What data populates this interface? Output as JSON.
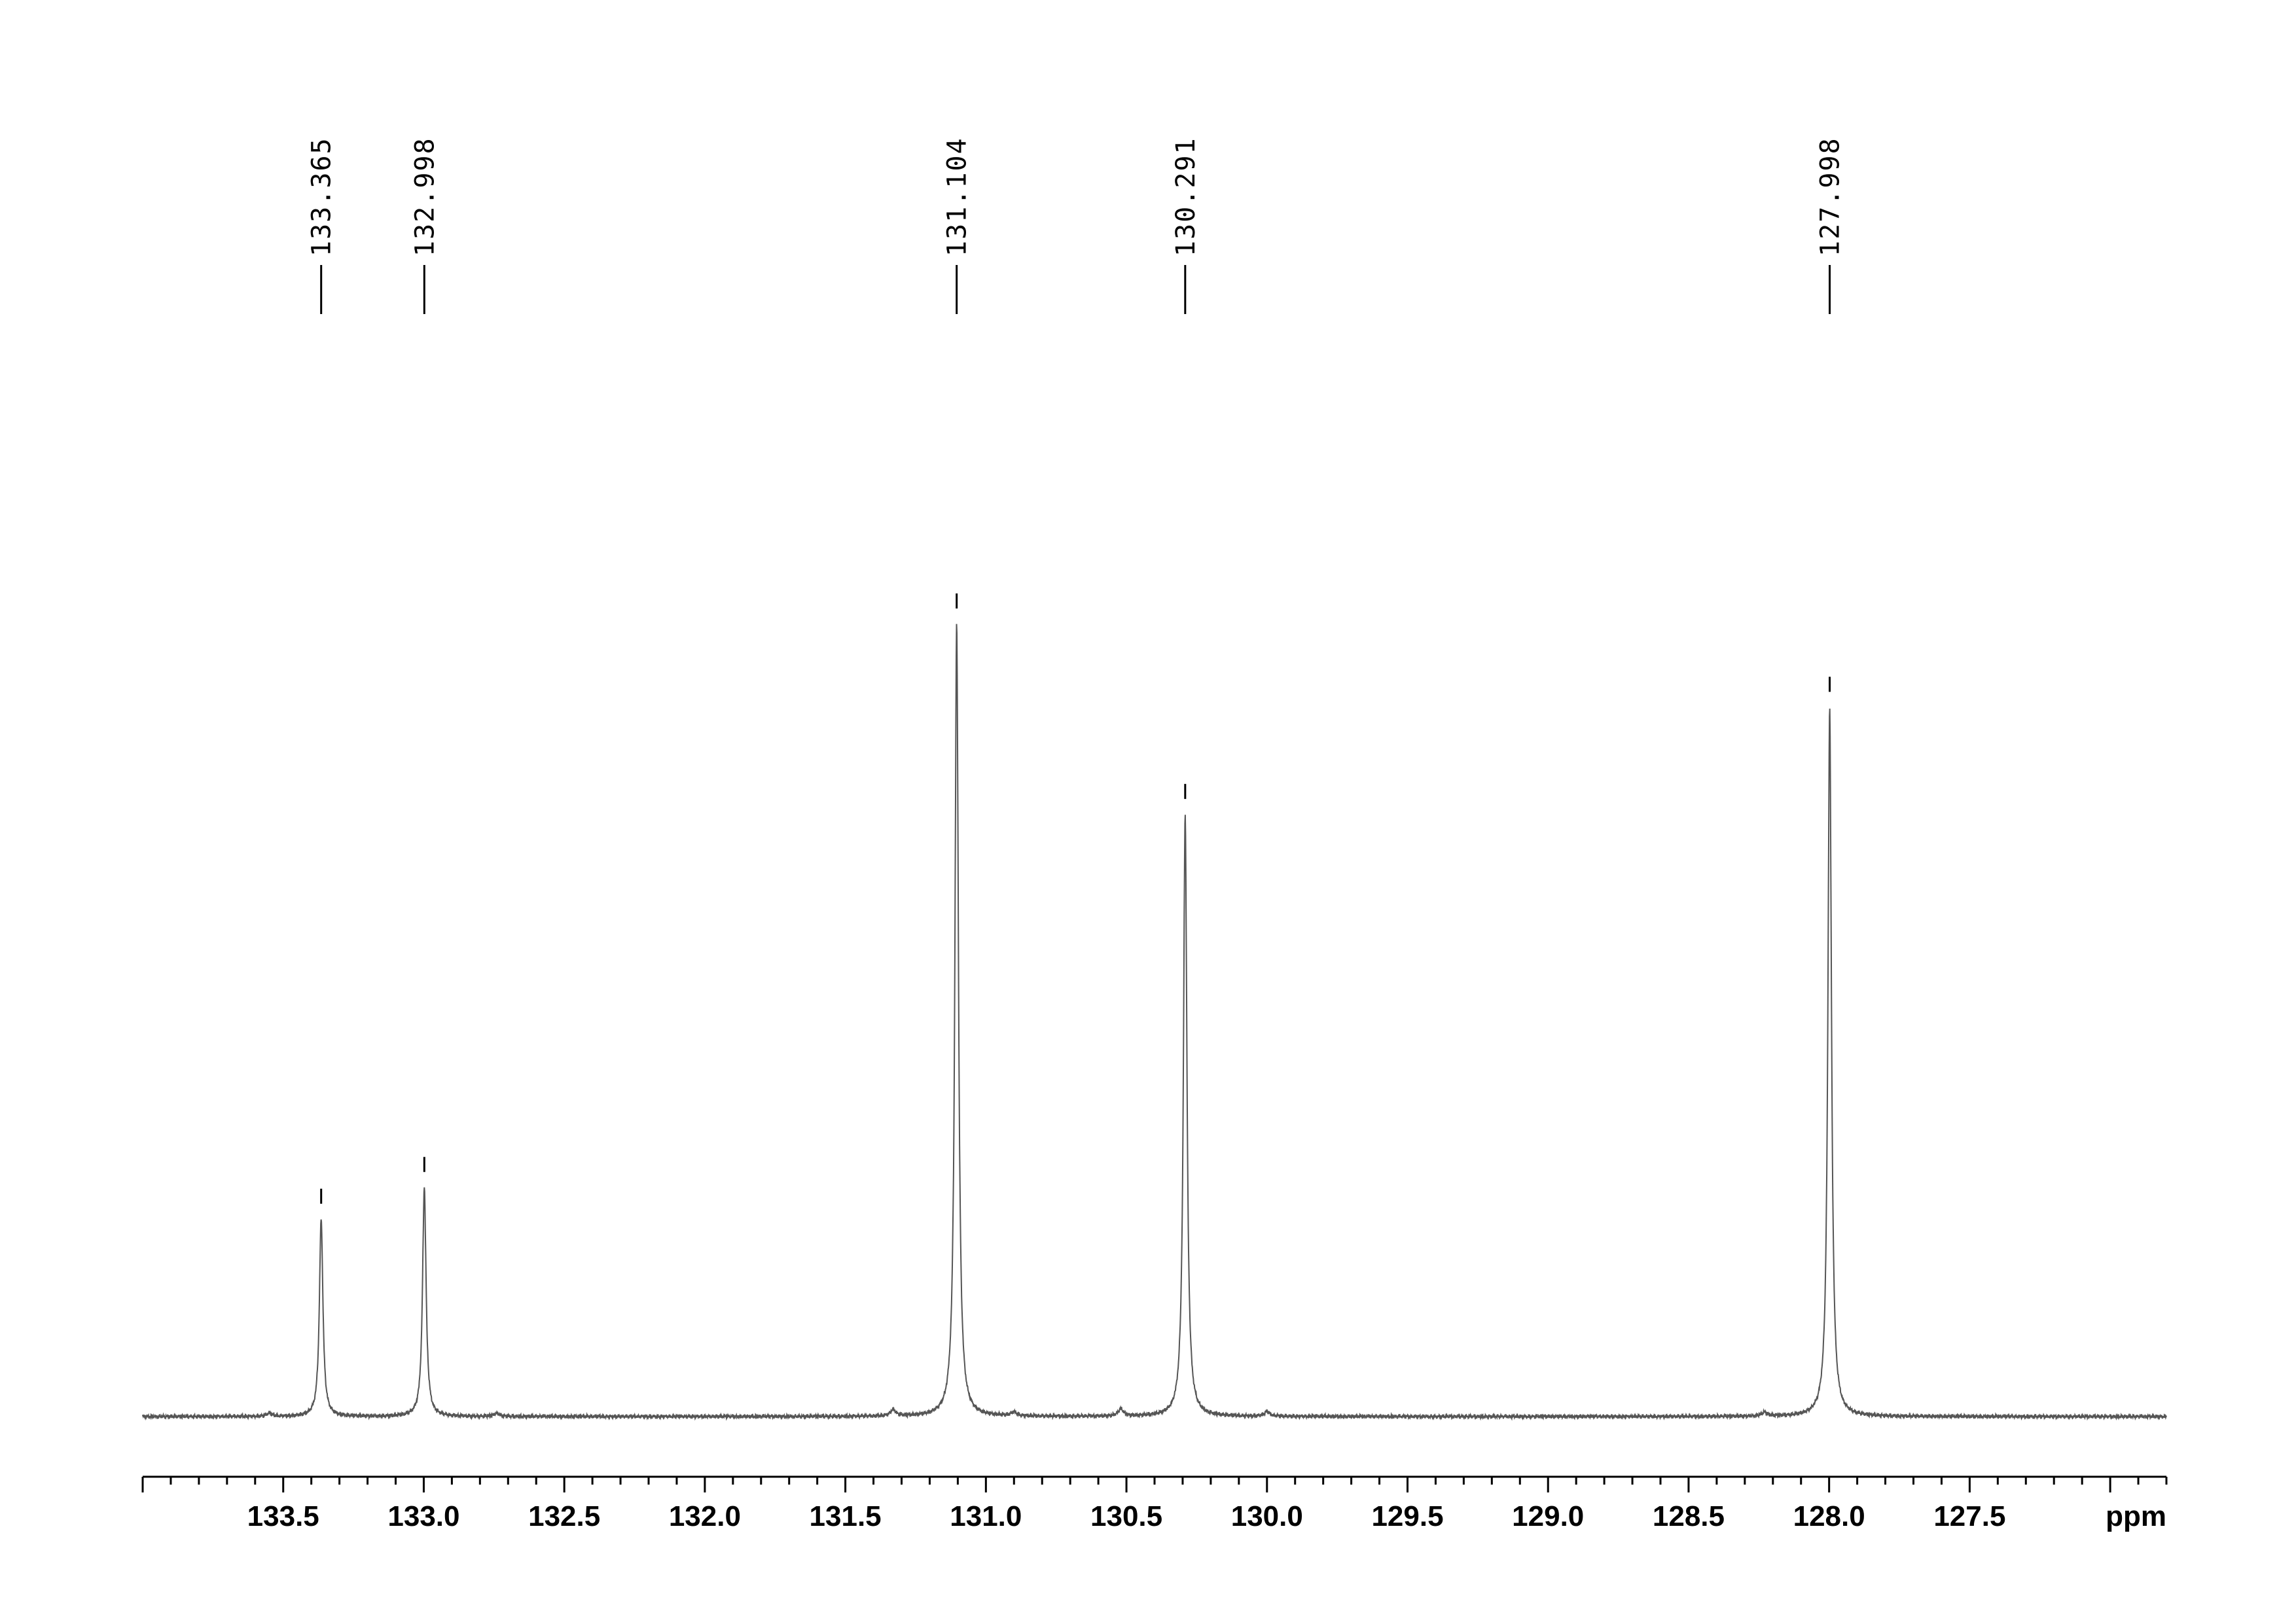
{
  "chart_data": {
    "type": "line",
    "title": "",
    "xlabel": "ppm",
    "ylabel": "",
    "x_reversed": true,
    "xlim": [
      134.0,
      126.8
    ],
    "x_ticks": [
      {
        "value": 133.5,
        "label": "133.5"
      },
      {
        "value": 133.0,
        "label": "133.0"
      },
      {
        "value": 132.5,
        "label": "132.5"
      },
      {
        "value": 132.0,
        "label": "132.0"
      },
      {
        "value": 131.5,
        "label": "131.5"
      },
      {
        "value": 131.0,
        "label": "131.0"
      },
      {
        "value": 130.5,
        "label": "130.5"
      },
      {
        "value": 130.0,
        "label": "130.0"
      },
      {
        "value": 129.5,
        "label": "129.5"
      },
      {
        "value": 129.0,
        "label": "129.0"
      },
      {
        "value": 128.5,
        "label": "128.5"
      },
      {
        "value": 128.0,
        "label": "128.0"
      },
      {
        "value": 127.5,
        "label": "127.5"
      }
    ],
    "minor_tick_step": 0.1,
    "intensity_range": [
      0,
      1.0
    ],
    "peaks": [
      {
        "shift": 133.365,
        "label": "133.365",
        "intensity": 0.25
      },
      {
        "shift": 132.998,
        "label": "132.998",
        "intensity": 0.29
      },
      {
        "shift": 131.104,
        "label": "131.104",
        "intensity": 1.0
      },
      {
        "shift": 130.291,
        "label": "130.291",
        "intensity": 0.76
      },
      {
        "shift": 127.998,
        "label": "127.998",
        "intensity": 0.895
      }
    ],
    "minor_features": [
      {
        "shift": 133.55,
        "intensity": 0.004
      },
      {
        "shift": 132.74,
        "intensity": 0.004
      },
      {
        "shift": 131.33,
        "intensity": 0.008
      },
      {
        "shift": 130.9,
        "intensity": 0.005
      },
      {
        "shift": 130.52,
        "intensity": 0.009
      },
      {
        "shift": 130.0,
        "intensity": 0.006
      },
      {
        "shift": 128.23,
        "intensity": 0.005
      }
    ],
    "grid": false,
    "legend": "none"
  }
}
